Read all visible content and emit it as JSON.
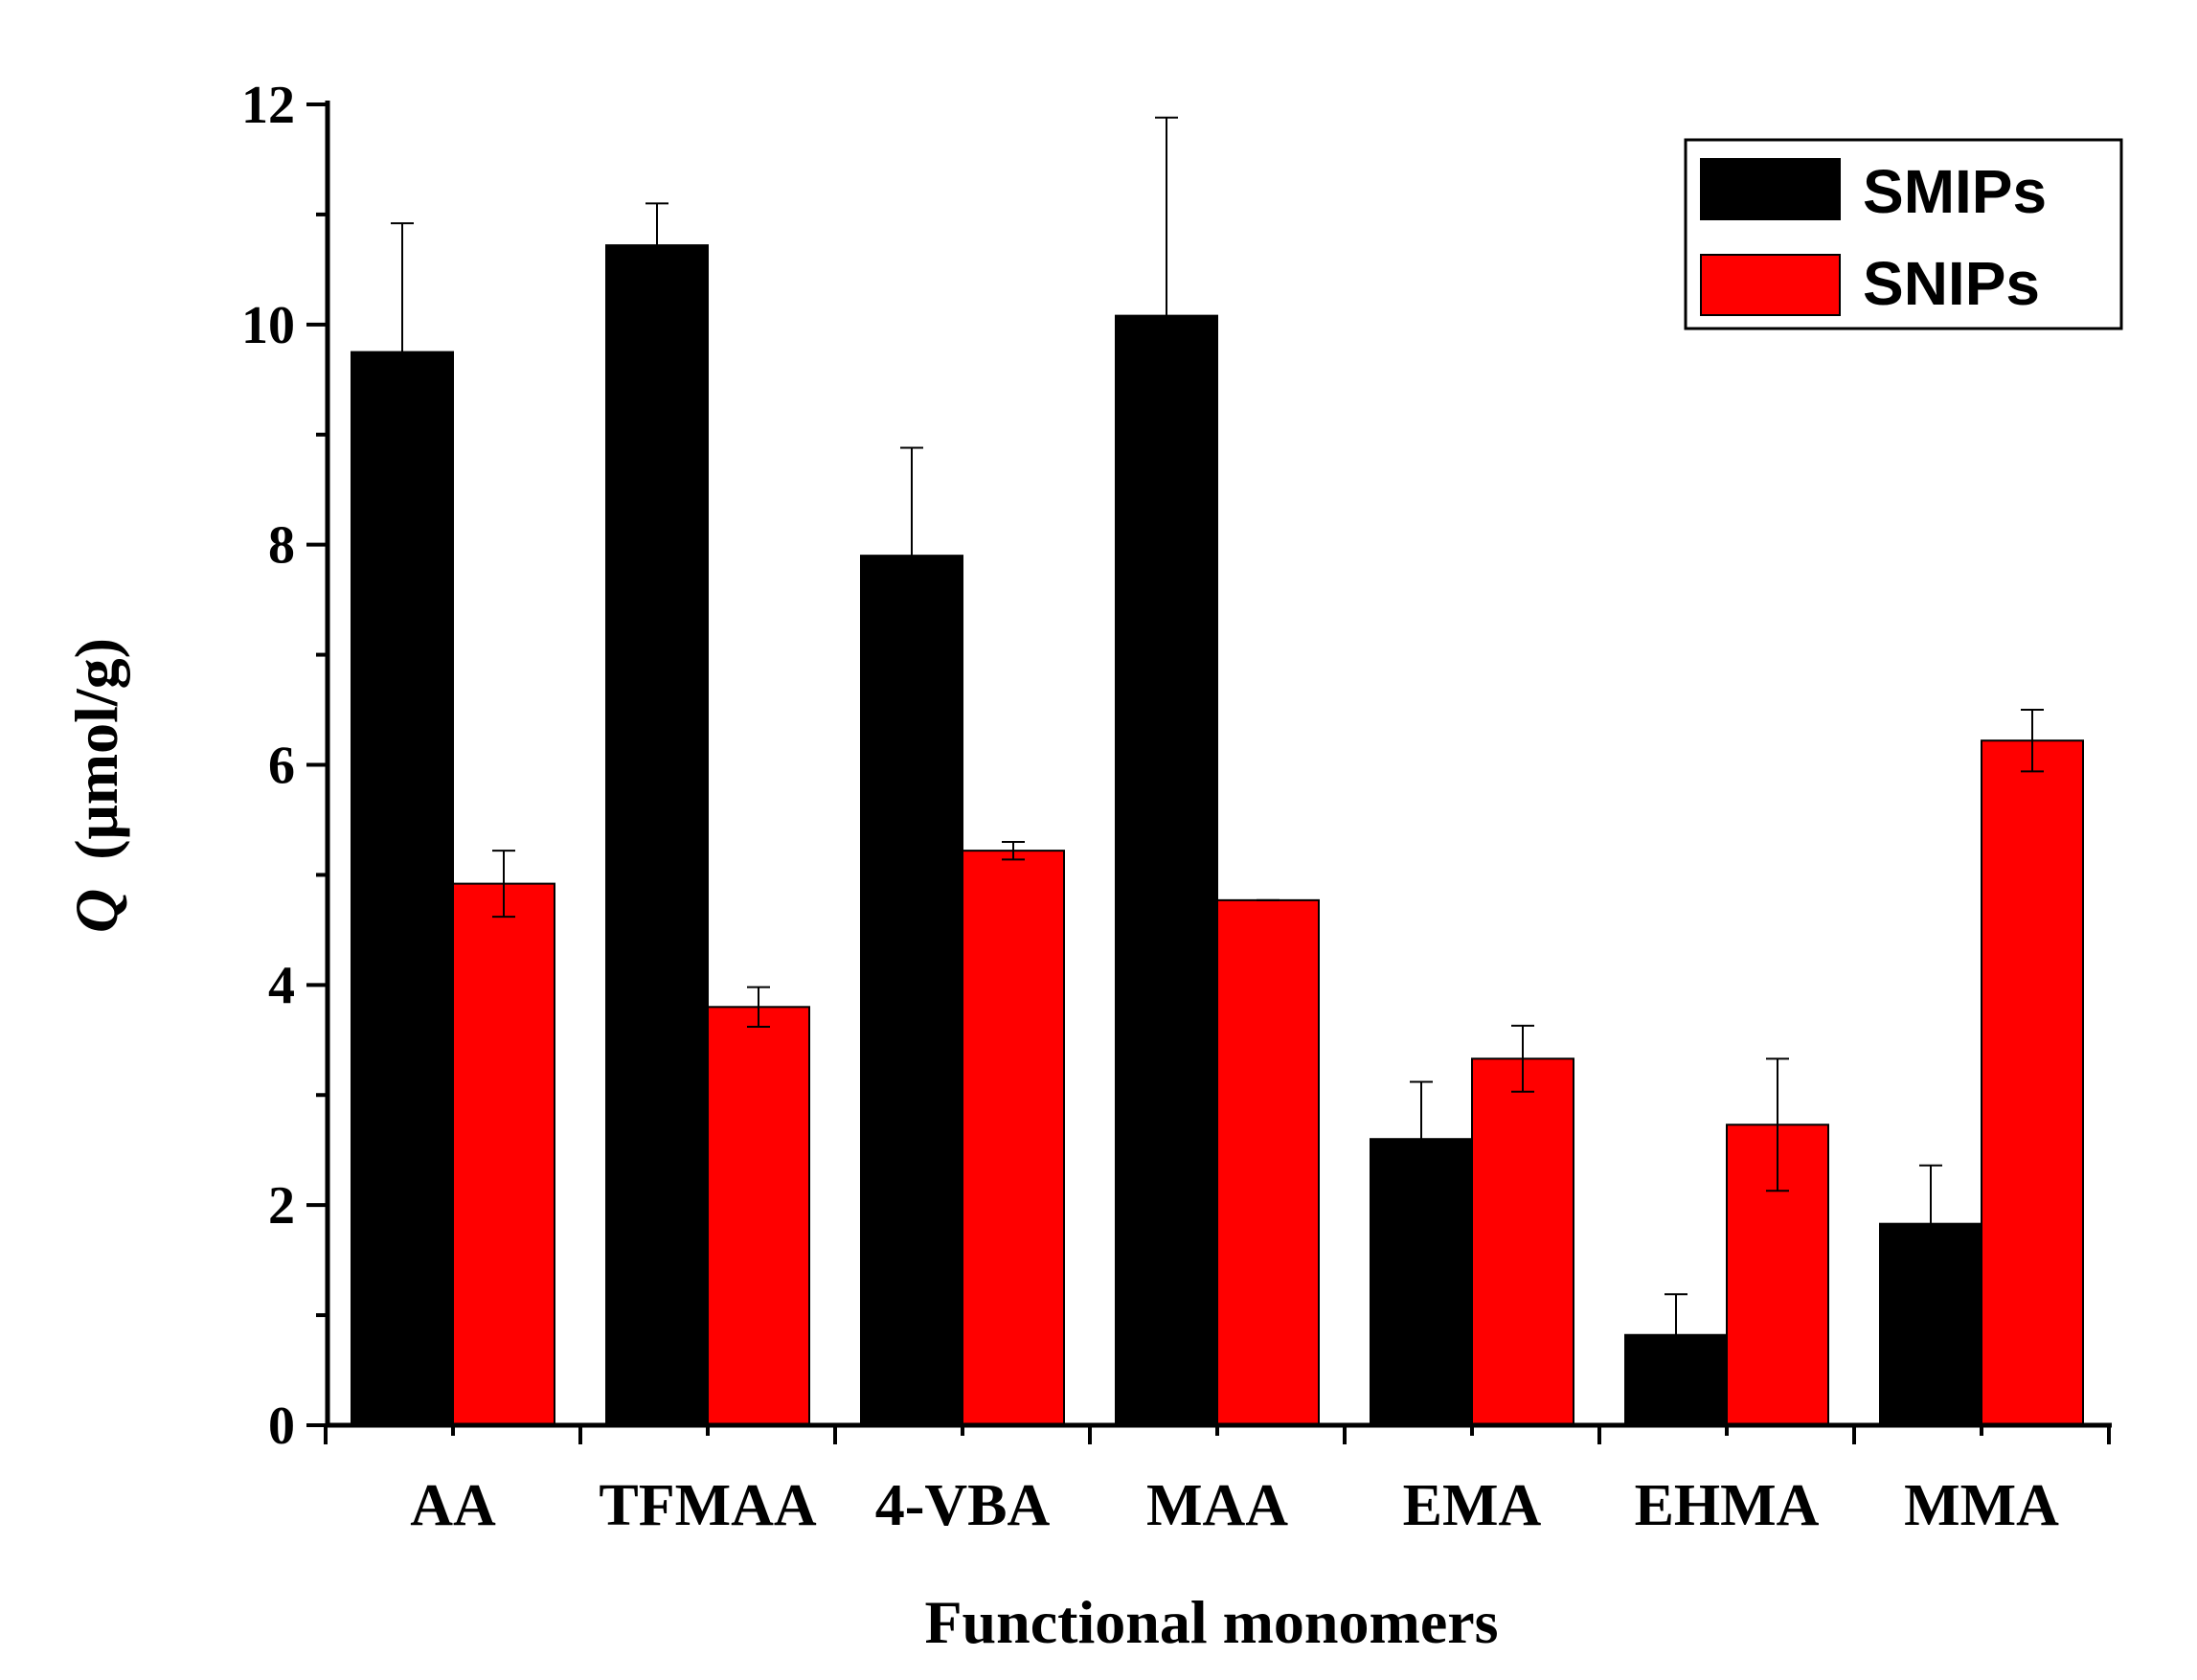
{
  "chart_data": {
    "type": "bar",
    "title": "",
    "xlabel": "Functional monomers",
    "ylabel_symbol": "Q",
    "ylabel_unit": "(μmol/g)",
    "ylim": [
      0,
      12
    ],
    "yticks": [
      0,
      2,
      4,
      6,
      8,
      10,
      12
    ],
    "grid": false,
    "legend_position": "top-right",
    "categories": [
      "AA",
      "TFMAA",
      "4-VBA",
      "MAA",
      "EMA",
      "EHMA",
      "MMA"
    ],
    "series": [
      {
        "name": "SMIPs",
        "color": "#000000",
        "values": [
          9.75,
          10.72,
          7.9,
          10.08,
          2.6,
          0.82,
          1.83
        ],
        "errors": [
          1.17,
          0.38,
          0.98,
          1.8,
          0.52,
          0.37,
          0.53
        ]
      },
      {
        "name": "SNIPs",
        "color": "#ff0000",
        "values": [
          4.92,
          3.8,
          5.22,
          4.77,
          3.33,
          2.73,
          6.22
        ],
        "errors": [
          0.3,
          0.18,
          0.08,
          0.0,
          0.3,
          0.6,
          0.28
        ]
      }
    ]
  }
}
